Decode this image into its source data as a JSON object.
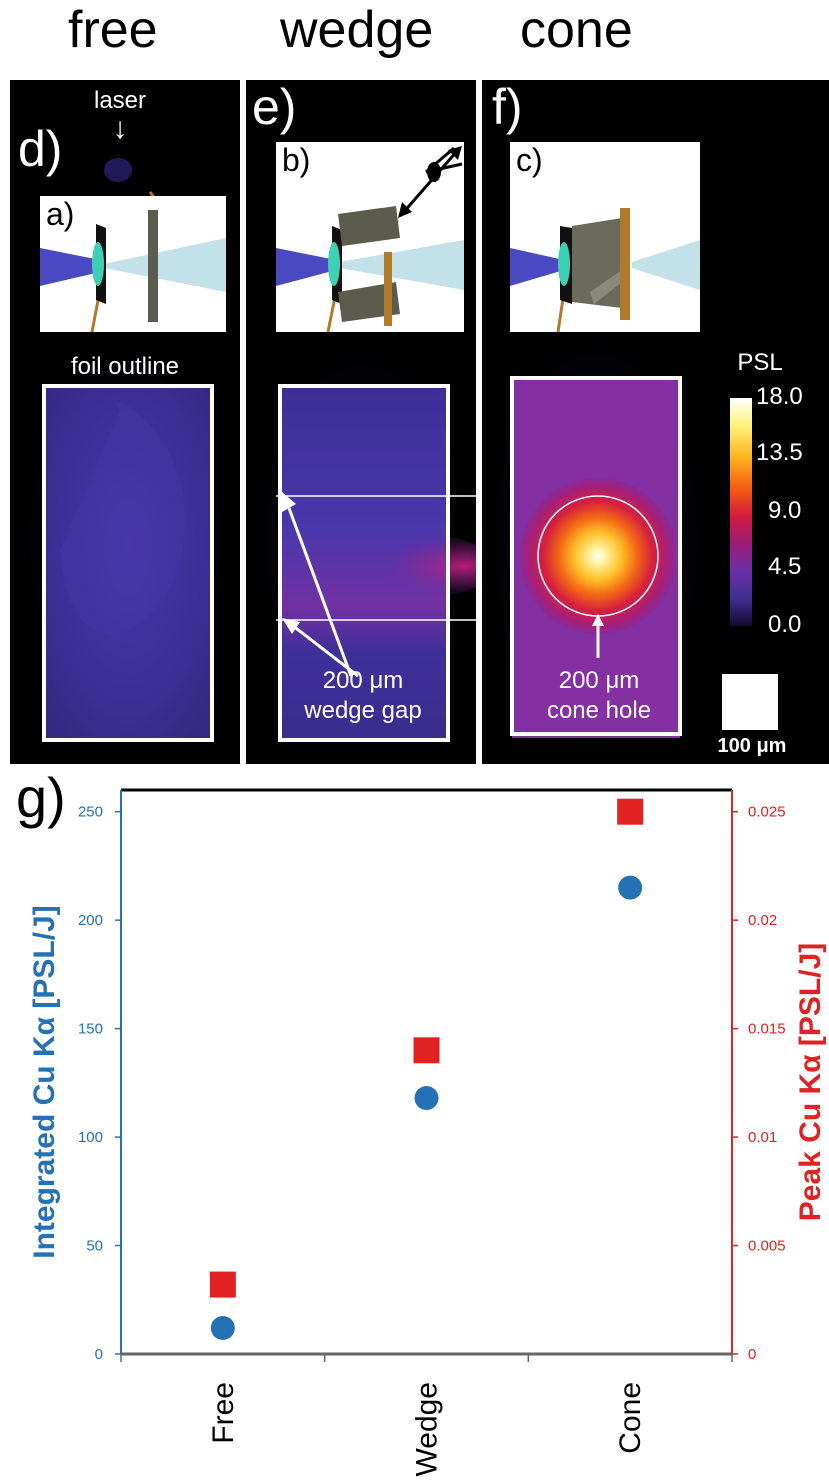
{
  "column_titles": {
    "free": "free",
    "wedge": "wedge",
    "cone": "cone"
  },
  "panels": {
    "d": {
      "letter": "d)",
      "inset_letter": "a)",
      "laser_label": "laser",
      "laser_arrow": "↓",
      "foil_label": "foil outline"
    },
    "e": {
      "letter": "e)",
      "inset_letter": "b)",
      "gap_line1": "200 μm",
      "gap_line2": "wedge gap"
    },
    "f": {
      "letter": "f)",
      "inset_letter": "c)",
      "hole_line1": "200 μm",
      "hole_line2": "cone hole"
    }
  },
  "colorbar": {
    "title": "PSL",
    "ticks": [
      "18.0",
      "13.5",
      "9.0",
      "4.5",
      "0.0"
    ],
    "scale_label": "100 μm",
    "stops": [
      "#ffffff",
      "#fff27a",
      "#ffb21f",
      "#f45a12",
      "#d3193e",
      "#9c1c7a",
      "#6a2fa8",
      "#3f2f8e",
      "#120a2e"
    ]
  },
  "colors": {
    "left_axis": "#2472b5",
    "right_axis": "#e02222",
    "laser_beam": "#4a49c2",
    "xray_beam": "#c3e1e8",
    "target": "#3fcfb3",
    "foil": "#5c5c4e",
    "holder": "#b07a2a"
  },
  "chart_data": {
    "panel_label": "g)",
    "type": "scatter",
    "categories": [
      "Free",
      "Wedge",
      "Cone"
    ],
    "ylabel_left": "Integrated Cu Kα [PSL/J]",
    "ylabel_right": "Peak Cu Kα [PSL/J]",
    "ylim_left": [
      0,
      260
    ],
    "ylim_right": [
      0,
      0.026
    ],
    "yticks_left": [
      "0",
      "50",
      "100",
      "150",
      "200",
      "250"
    ],
    "yticks_right": [
      "0",
      "0.005",
      "0.01",
      "0.015",
      "0.02",
      "0.025"
    ],
    "series": [
      {
        "axis": "left",
        "marker": "circle",
        "color": "#2472b5",
        "values": [
          12,
          118,
          215
        ]
      },
      {
        "axis": "right",
        "marker": "square",
        "color": "#e02222",
        "values": [
          0.0032,
          0.014,
          0.025
        ]
      }
    ]
  }
}
